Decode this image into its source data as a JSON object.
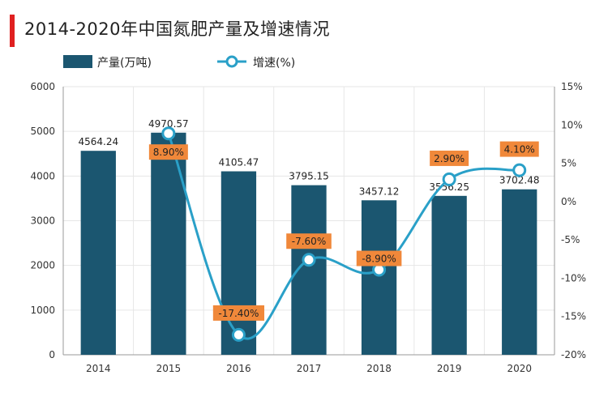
{
  "title": "2014-2020年中国氮肥产量及增速情况",
  "chart_data": {
    "type": "bar+line",
    "categories": [
      "2014",
      "2015",
      "2016",
      "2017",
      "2018",
      "2019",
      "2020"
    ],
    "series": [
      {
        "name": "产量(万吨)",
        "type": "bar",
        "axis": "left",
        "values": [
          4564.24,
          4970.57,
          4105.47,
          3795.15,
          3457.12,
          3556.25,
          3702.48
        ],
        "labels": [
          "4564.24",
          "4970.57",
          "4105.47",
          "3795.15",
          "3457.12",
          "3556.25",
          "3702.48"
        ],
        "color": "#1b5670"
      },
      {
        "name": "增速(%)",
        "type": "line",
        "axis": "right",
        "values": [
          null,
          8.9,
          -17.4,
          -7.6,
          -8.9,
          2.9,
          4.1
        ],
        "labels": [
          null,
          "8.90%",
          "-17.40%",
          "-7.60%",
          "-8.90%",
          "2.90%",
          "4.10%"
        ],
        "color": "#2aa0c8"
      }
    ],
    "y_left": {
      "min": 0,
      "max": 6000,
      "ticks": [
        "0",
        "1000",
        "2000",
        "3000",
        "4000",
        "5000",
        "6000"
      ]
    },
    "y_right": {
      "min": -20,
      "max": 15,
      "ticks": [
        "-20%",
        "-15%",
        "-10%",
        "-5%",
        "0%",
        "5%",
        "10%",
        "15%"
      ]
    },
    "grid": true,
    "legend_position": "top-left",
    "label_box_color": "#f0883a"
  }
}
